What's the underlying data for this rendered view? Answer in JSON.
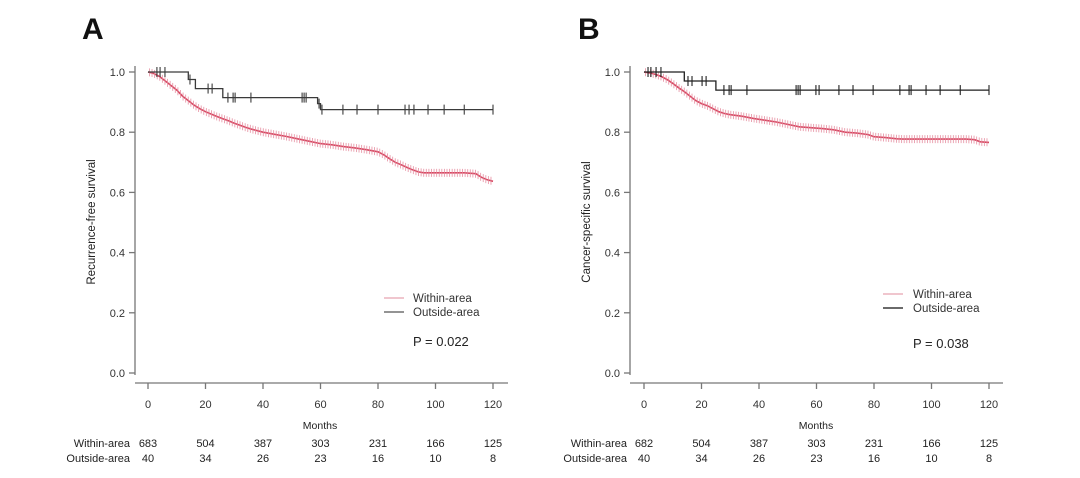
{
  "chart_data": [
    {
      "type": "line",
      "subtype": "kaplan-meier",
      "panel": "A",
      "title": "",
      "xlabel": "Months",
      "ylabel": "Recurrence-free survival",
      "xlim": [
        0,
        120
      ],
      "ylim": [
        0,
        1.0
      ],
      "x_ticks": [
        "0",
        "20",
        "40",
        "60",
        "80",
        "100",
        "120"
      ],
      "y_ticks": [
        "0.0",
        "0.2",
        "0.4",
        "0.6",
        "0.8",
        "1.0"
      ],
      "grid": false,
      "legend": {
        "placement": "bottom-right",
        "entries": [
          "Within-area",
          "Outside-area"
        ]
      },
      "annotation": "P = 0.022",
      "series": [
        {
          "name": "Within-area",
          "color": "#d6455f",
          "points": [
            [
              0,
              1.0
            ],
            [
              2,
              0.995
            ],
            [
              4,
              0.985
            ],
            [
              6,
              0.97
            ],
            [
              8,
              0.955
            ],
            [
              10,
              0.94
            ],
            [
              12,
              0.92
            ],
            [
              14,
              0.905
            ],
            [
              16,
              0.89
            ],
            [
              18,
              0.878
            ],
            [
              20,
              0.868
            ],
            [
              22,
              0.86
            ],
            [
              24,
              0.852
            ],
            [
              26,
              0.845
            ],
            [
              28,
              0.838
            ],
            [
              30,
              0.83
            ],
            [
              32,
              0.823
            ],
            [
              34,
              0.816
            ],
            [
              36,
              0.81
            ],
            [
              38,
              0.805
            ],
            [
              40,
              0.8
            ],
            [
              44,
              0.793
            ],
            [
              48,
              0.786
            ],
            [
              52,
              0.778
            ],
            [
              56,
              0.77
            ],
            [
              60,
              0.762
            ],
            [
              64,
              0.758
            ],
            [
              68,
              0.752
            ],
            [
              72,
              0.748
            ],
            [
              76,
              0.742
            ],
            [
              80,
              0.735
            ],
            [
              82,
              0.725
            ],
            [
              84,
              0.712
            ],
            [
              86,
              0.7
            ],
            [
              88,
              0.692
            ],
            [
              90,
              0.683
            ],
            [
              92,
              0.675
            ],
            [
              94,
              0.668
            ],
            [
              96,
              0.665
            ],
            [
              100,
              0.665
            ],
            [
              110,
              0.665
            ],
            [
              114,
              0.662
            ],
            [
              116,
              0.65
            ],
            [
              118,
              0.642
            ],
            [
              120,
              0.637
            ]
          ],
          "censor_dense": true
        },
        {
          "name": "Outside-area",
          "color": "#3a3a3a",
          "steps": [
            [
              0,
              1.0
            ],
            [
              14,
              0.975
            ],
            [
              16.5,
              0.945
            ],
            [
              26,
              0.915
            ],
            [
              59,
              0.895
            ],
            [
              60,
              0.875
            ],
            [
              120,
              0.875
            ]
          ],
          "censor_times": [
            3.1,
            4.2,
            5.9,
            14.6,
            20.9,
            22.3,
            27.8,
            29.6,
            30.3,
            35.8,
            53.6,
            54.3,
            55.0,
            59.5,
            60.5,
            67.8,
            72.7,
            80,
            89.4,
            90.8,
            92.5,
            97.4,
            103,
            110,
            120
          ]
        }
      ],
      "risk_table": {
        "times": [
          0,
          20,
          40,
          60,
          80,
          100,
          120
        ],
        "rows": [
          {
            "label": "Within-area",
            "values": [
              683,
              504,
              387,
              303,
              231,
              166,
              125
            ]
          },
          {
            "label": "Outside-area",
            "values": [
              40,
              34,
              26,
              23,
              16,
              10,
              8
            ]
          }
        ]
      }
    },
    {
      "type": "line",
      "subtype": "kaplan-meier",
      "panel": "B",
      "title": "",
      "xlabel": "Months",
      "ylabel": "Cancer-specific survival",
      "xlim": [
        0,
        120
      ],
      "ylim": [
        0,
        1.0
      ],
      "x_ticks": [
        "0",
        "20",
        "40",
        "60",
        "80",
        "100",
        "120"
      ],
      "y_ticks": [
        "0.0",
        "0.2",
        "0.4",
        "0.6",
        "0.8",
        "1.0"
      ],
      "grid": false,
      "legend": {
        "placement": "bottom-right",
        "entries": [
          "Within-area",
          "Outside-area"
        ]
      },
      "annotation": "P = 0.038",
      "series": [
        {
          "name": "Within-area",
          "color": "#d6455f",
          "points": [
            [
              0,
              1.0
            ],
            [
              2,
              0.997
            ],
            [
              4,
              0.992
            ],
            [
              6,
              0.985
            ],
            [
              8,
              0.975
            ],
            [
              10,
              0.962
            ],
            [
              12,
              0.948
            ],
            [
              14,
              0.935
            ],
            [
              16,
              0.92
            ],
            [
              18,
              0.905
            ],
            [
              20,
              0.895
            ],
            [
              22,
              0.888
            ],
            [
              24,
              0.878
            ],
            [
              26,
              0.868
            ],
            [
              28,
              0.862
            ],
            [
              30,
              0.858
            ],
            [
              34,
              0.853
            ],
            [
              38,
              0.846
            ],
            [
              42,
              0.84
            ],
            [
              46,
              0.834
            ],
            [
              50,
              0.826
            ],
            [
              54,
              0.818
            ],
            [
              58,
              0.815
            ],
            [
              62,
              0.812
            ],
            [
              66,
              0.808
            ],
            [
              70,
              0.8
            ],
            [
              74,
              0.797
            ],
            [
              78,
              0.792
            ],
            [
              80,
              0.785
            ],
            [
              84,
              0.782
            ],
            [
              88,
              0.778
            ],
            [
              90,
              0.777
            ],
            [
              100,
              0.777
            ],
            [
              112,
              0.777
            ],
            [
              115,
              0.775
            ],
            [
              117,
              0.768
            ],
            [
              120,
              0.766
            ]
          ],
          "censor_dense": true
        },
        {
          "name": "Outside-area",
          "color": "#1f1f1f",
          "steps": [
            [
              0,
              1.0
            ],
            [
              14,
              0.97
            ],
            [
              25,
              0.94
            ],
            [
              120,
              0.94
            ]
          ],
          "censor_times": [
            1.4,
            2.4,
            4.2,
            5.9,
            15.3,
            16.7,
            20.2,
            21.6,
            27.8,
            29.6,
            30.3,
            35.8,
            52.9,
            53.6,
            54.3,
            59.8,
            60.9,
            67.8,
            72.7,
            79.7,
            89,
            92.2,
            92.9,
            98.1,
            103,
            110,
            120
          ]
        }
      ],
      "risk_table": {
        "times": [
          0,
          20,
          40,
          60,
          80,
          100,
          120
        ],
        "rows": [
          {
            "label": "Within-area",
            "values": [
              682,
              504,
              387,
              303,
              231,
              166,
              125
            ]
          },
          {
            "label": "Outside-area",
            "values": [
              40,
              34,
              26,
              23,
              16,
              10,
              8
            ]
          }
        ]
      }
    }
  ]
}
